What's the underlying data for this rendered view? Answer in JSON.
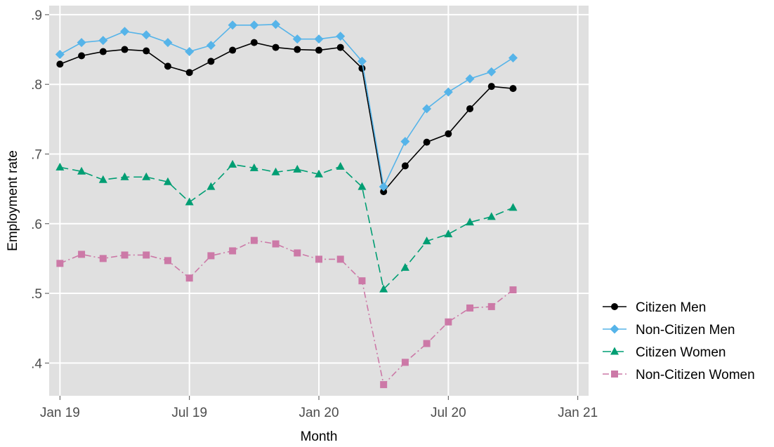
{
  "chart_data": {
    "type": "line",
    "xlabel": "Month",
    "ylabel": "Employment rate",
    "x_ticks": [
      "Jan 19",
      "Jul 19",
      "Jan 20",
      "Jul 20",
      "Jan 21"
    ],
    "x_tick_months": [
      0,
      6,
      12,
      18,
      24
    ],
    "y_ticks": [
      ".4",
      ".5",
      ".6",
      ".7",
      ".8",
      ".9"
    ],
    "y_tick_values": [
      0.4,
      0.5,
      0.6,
      0.7,
      0.8,
      0.9
    ],
    "xlim": [
      -0.5,
      24.5
    ],
    "ylim": [
      0.353,
      0.913
    ],
    "grid": true,
    "legend_position": "right",
    "x_months": [
      0,
      1,
      2,
      3,
      4,
      5,
      6,
      7,
      8,
      9,
      10,
      11,
      12,
      13,
      14,
      15,
      16,
      17,
      18,
      19,
      20,
      21
    ],
    "series": [
      {
        "name": "Citizen Men",
        "color": "#000000",
        "marker": "circle",
        "dash": "solid",
        "values": [
          0.829,
          0.841,
          0.847,
          0.85,
          0.848,
          0.826,
          0.817,
          0.833,
          0.849,
          0.86,
          0.853,
          0.85,
          0.849,
          0.853,
          0.823,
          0.646,
          0.683,
          0.717,
          0.729,
          0.765,
          0.797,
          0.794
        ]
      },
      {
        "name": "Non-Citizen Men",
        "color": "#56b4e9",
        "marker": "diamond",
        "dash": "solid",
        "values": [
          0.843,
          0.86,
          0.863,
          0.876,
          0.871,
          0.86,
          0.847,
          0.856,
          0.885,
          0.885,
          0.886,
          0.865,
          0.865,
          0.869,
          0.833,
          0.653,
          0.718,
          0.765,
          0.789,
          0.808,
          0.818,
          0.838
        ]
      },
      {
        "name": "Citizen Women",
        "color": "#009e73",
        "marker": "triangle",
        "dash": "dashed",
        "values": [
          0.681,
          0.675,
          0.663,
          0.667,
          0.667,
          0.66,
          0.631,
          0.653,
          0.685,
          0.68,
          0.674,
          0.678,
          0.671,
          0.682,
          0.653,
          0.506,
          0.537,
          0.575,
          0.585,
          0.602,
          0.61,
          0.623
        ]
      },
      {
        "name": "Non-Citizen Women",
        "color": "#cc79a7",
        "marker": "square",
        "dash": "dashdot",
        "values": [
          0.543,
          0.556,
          0.55,
          0.555,
          0.555,
          0.547,
          0.522,
          0.554,
          0.561,
          0.576,
          0.571,
          0.558,
          0.549,
          0.549,
          0.518,
          0.369,
          0.401,
          0.428,
          0.459,
          0.479,
          0.481,
          0.505
        ]
      }
    ]
  }
}
